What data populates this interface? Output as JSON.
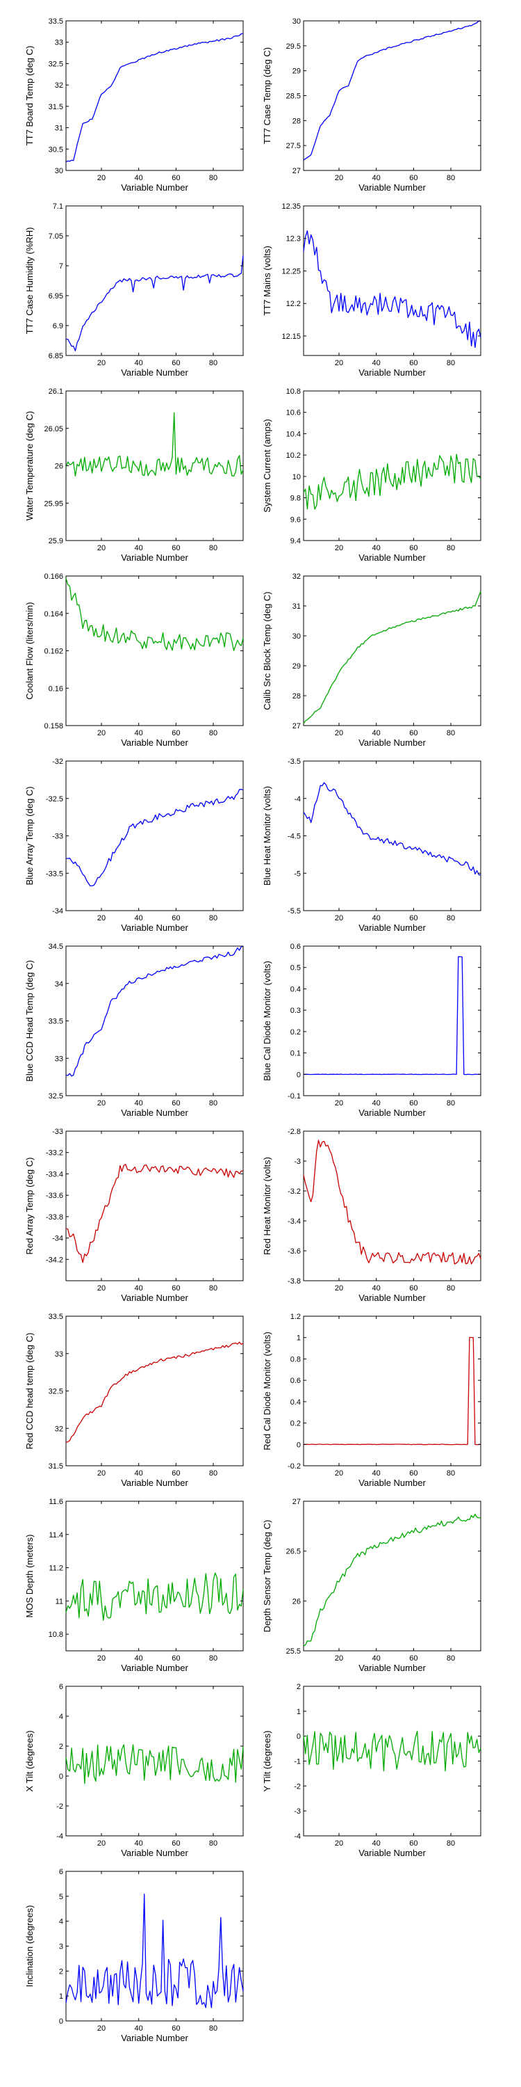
{
  "chart_data": [
    {
      "type": "line",
      "xlabel": "Variable Number",
      "ylabel": "TT7 Board Temp (deg C)",
      "xlim": [
        1,
        96
      ],
      "xticks": [
        20,
        40,
        60,
        80
      ],
      "ylim": [
        30,
        33.5
      ],
      "yticks": [
        30,
        30.5,
        31,
        31.5,
        32,
        32.5,
        33,
        33.5
      ],
      "color": "#0000ff",
      "noise": 0.02,
      "seed": 1,
      "spikes": [],
      "anchors": [
        [
          1,
          30.2
        ],
        [
          5,
          30.25
        ],
        [
          10,
          31.1
        ],
        [
          15,
          31.2
        ],
        [
          20,
          31.8
        ],
        [
          25,
          31.95
        ],
        [
          30,
          32.4
        ],
        [
          35,
          32.5
        ],
        [
          50,
          32.75
        ],
        [
          70,
          32.95
        ],
        [
          90,
          33.1
        ],
        [
          96,
          33.2
        ]
      ]
    },
    {
      "type": "line",
      "xlabel": "Variable Number",
      "ylabel": "TT7 Case Temp (deg C)",
      "xlim": [
        1,
        96
      ],
      "xticks": [
        20,
        40,
        60,
        80
      ],
      "ylim": [
        27,
        30
      ],
      "yticks": [
        27,
        27.5,
        28,
        28.5,
        29,
        29.5,
        30
      ],
      "color": "#0000ff",
      "noise": 0.015,
      "seed": 2,
      "spikes": [],
      "anchors": [
        [
          1,
          27.2
        ],
        [
          5,
          27.3
        ],
        [
          10,
          27.9
        ],
        [
          15,
          28.1
        ],
        [
          20,
          28.6
        ],
        [
          25,
          28.7
        ],
        [
          30,
          29.2
        ],
        [
          35,
          29.3
        ],
        [
          50,
          29.5
        ],
        [
          70,
          29.7
        ],
        [
          90,
          29.9
        ],
        [
          96,
          30
        ]
      ]
    },
    {
      "type": "line",
      "xlabel": "Variable Number",
      "ylabel": "TT7 Case Humidity (%RH)",
      "xlim": [
        1,
        96
      ],
      "xticks": [
        20,
        40,
        60,
        80
      ],
      "ylim": [
        6.85,
        7.1
      ],
      "yticks": [
        6.85,
        6.9,
        6.95,
        7,
        7.05,
        7.1
      ],
      "color": "#0000ff",
      "noise": 0.003,
      "seed": 3,
      "spikes": [
        [
          37,
          -0.02
        ],
        [
          48,
          -0.015
        ],
        [
          64,
          -0.02
        ],
        [
          78,
          -0.015
        ],
        [
          96,
          0.03
        ]
      ],
      "anchors": [
        [
          1,
          6.88
        ],
        [
          6,
          6.86
        ],
        [
          10,
          6.9
        ],
        [
          15,
          6.92
        ],
        [
          20,
          6.94
        ],
        [
          25,
          6.96
        ],
        [
          30,
          6.975
        ],
        [
          50,
          6.98
        ],
        [
          95,
          6.985
        ]
      ]
    },
    {
      "type": "line",
      "xlabel": "Variable Number",
      "ylabel": "TT7 Mains (volts)",
      "xlim": [
        1,
        96
      ],
      "xticks": [
        20,
        40,
        60,
        80
      ],
      "ylim": [
        12.12,
        12.35
      ],
      "yticks": [
        12.15,
        12.2,
        12.25,
        12.3,
        12.35
      ],
      "color": "#0000ff",
      "noise": 0.018,
      "seed": 4,
      "spikes": [],
      "anchors": [
        [
          1,
          12.29
        ],
        [
          5,
          12.3
        ],
        [
          10,
          12.26
        ],
        [
          15,
          12.2
        ],
        [
          25,
          12.2
        ],
        [
          40,
          12.2
        ],
        [
          60,
          12.19
        ],
        [
          80,
          12.18
        ],
        [
          96,
          12.14
        ]
      ]
    },
    {
      "type": "line",
      "xlabel": "Variable Number",
      "ylabel": "Water Temperature (deg C)",
      "xlim": [
        1,
        96
      ],
      "xticks": [
        20,
        40,
        60,
        80
      ],
      "ylim": [
        25.9,
        26.1
      ],
      "yticks": [
        25.9,
        25.95,
        26,
        26.05,
        26.1
      ],
      "color": "#00aa00",
      "noise": 0.014,
      "seed": 5,
      "spikes": [
        [
          59,
          0.06
        ]
      ],
      "anchors": [
        [
          1,
          26
        ],
        [
          96,
          26
        ]
      ]
    },
    {
      "type": "line",
      "xlabel": "Variable Number",
      "ylabel": "System Current (amps)",
      "xlim": [
        1,
        96
      ],
      "xticks": [
        20,
        40,
        60,
        80
      ],
      "ylim": [
        9.4,
        10.8
      ],
      "yticks": [
        9.4,
        9.6,
        9.8,
        10,
        10.2,
        10.4,
        10.6,
        10.8
      ],
      "color": "#00aa00",
      "noise": 0.15,
      "seed": 6,
      "spikes": [],
      "anchors": [
        [
          1,
          9.8
        ],
        [
          50,
          10
        ],
        [
          96,
          10.1
        ]
      ]
    },
    {
      "type": "line",
      "xlabel": "Variable Number",
      "ylabel": "Coolant Flow (liters/min)",
      "xlim": [
        1,
        96
      ],
      "xticks": [
        20,
        40,
        60,
        80
      ],
      "ylim": [
        0.158,
        0.166
      ],
      "yticks": [
        0.158,
        0.16,
        0.162,
        0.164,
        0.166
      ],
      "color": "#00aa00",
      "noise": 0.0005,
      "seed": 7,
      "spikes": [],
      "anchors": [
        [
          1,
          0.1655
        ],
        [
          5,
          0.165
        ],
        [
          10,
          0.1635
        ],
        [
          20,
          0.163
        ],
        [
          40,
          0.1625
        ],
        [
          60,
          0.1625
        ],
        [
          96,
          0.1625
        ]
      ]
    },
    {
      "type": "line",
      "xlabel": "Variable Number",
      "ylabel": "Calib Src Block Temp (deg C)",
      "xlim": [
        1,
        96
      ],
      "xticks": [
        20,
        40,
        60,
        80
      ],
      "ylim": [
        27,
        32
      ],
      "yticks": [
        27,
        28,
        29,
        30,
        31,
        32
      ],
      "color": "#00aa00",
      "noise": 0.04,
      "seed": 8,
      "spikes": [],
      "anchors": [
        [
          1,
          27.1
        ],
        [
          10,
          27.6
        ],
        [
          20,
          28.8
        ],
        [
          30,
          29.6
        ],
        [
          40,
          30.1
        ],
        [
          60,
          30.5
        ],
        [
          80,
          30.8
        ],
        [
          93,
          31
        ],
        [
          96,
          31.5
        ]
      ]
    },
    {
      "type": "line",
      "xlabel": "Variable Number",
      "ylabel": "Blue Array Temp (deg C)",
      "xlim": [
        1,
        96
      ],
      "xticks": [
        20,
        40,
        60,
        80
      ],
      "ylim": [
        -34,
        -32
      ],
      "yticks": [
        -34,
        -33.5,
        -33,
        -32.5,
        -32
      ],
      "color": "#0000ff",
      "noise": 0.04,
      "seed": 9,
      "spikes": [],
      "anchors": [
        [
          1,
          -33.3
        ],
        [
          8,
          -33.4
        ],
        [
          15,
          -33.7
        ],
        [
          25,
          -33.3
        ],
        [
          35,
          -32.9
        ],
        [
          50,
          -32.75
        ],
        [
          70,
          -32.6
        ],
        [
          90,
          -32.5
        ],
        [
          96,
          -32.35
        ]
      ]
    },
    {
      "type": "line",
      "xlabel": "Variable Number",
      "ylabel": "Blue Heat Monitor (volts)",
      "xlim": [
        1,
        96
      ],
      "xticks": [
        20,
        40,
        60,
        80
      ],
      "ylim": [
        -5.5,
        -3.5
      ],
      "yticks": [
        -5.5,
        -5,
        -4.5,
        -4,
        -3.5
      ],
      "color": "#0000ff",
      "noise": 0.04,
      "seed": 10,
      "spikes": [],
      "anchors": [
        [
          1,
          -4.2
        ],
        [
          5,
          -4.3
        ],
        [
          10,
          -3.8
        ],
        [
          18,
          -3.9
        ],
        [
          25,
          -4.2
        ],
        [
          35,
          -4.5
        ],
        [
          50,
          -4.6
        ],
        [
          70,
          -4.75
        ],
        [
          90,
          -4.9
        ],
        [
          96,
          -5.05
        ]
      ]
    },
    {
      "type": "line",
      "xlabel": "Variable Number",
      "ylabel": "Blue CCD Head Temp (deg C)",
      "xlim": [
        1,
        96
      ],
      "xticks": [
        20,
        40,
        60,
        80
      ],
      "ylim": [
        32.5,
        34.5
      ],
      "yticks": [
        32.5,
        33,
        33.5,
        34,
        34.5
      ],
      "color": "#0000ff",
      "noise": 0.03,
      "seed": 11,
      "spikes": [],
      "anchors": [
        [
          1,
          32.75
        ],
        [
          5,
          32.8
        ],
        [
          12,
          33.2
        ],
        [
          20,
          33.4
        ],
        [
          25,
          33.75
        ],
        [
          35,
          34
        ],
        [
          50,
          34.15
        ],
        [
          70,
          34.3
        ],
        [
          90,
          34.4
        ],
        [
          96,
          34.5
        ]
      ]
    },
    {
      "type": "line",
      "xlabel": "Variable Number",
      "ylabel": "Blue Cal Diode Monitor (volts)",
      "xlim": [
        1,
        96
      ],
      "xticks": [
        20,
        40,
        60,
        80
      ],
      "ylim": [
        -0.1,
        0.6
      ],
      "yticks": [
        -0.1,
        0,
        0.1,
        0.2,
        0.3,
        0.4,
        0.5,
        0.6
      ],
      "color": "#0000ff",
      "noise": 0.001,
      "seed": 12,
      "spikes": [],
      "anchors": [
        [
          1,
          0
        ],
        [
          83,
          0
        ],
        [
          84,
          0.55
        ],
        [
          86,
          0.55
        ],
        [
          87,
          0
        ],
        [
          96,
          0
        ]
      ]
    },
    {
      "type": "line",
      "xlabel": "Variable Number",
      "ylabel": "Red Array Temp (deg C)",
      "xlim": [
        1,
        96
      ],
      "xticks": [
        20,
        40,
        60,
        80
      ],
      "ylim": [
        -34.4,
        -33
      ],
      "yticks": [
        -34.2,
        -34,
        -33.8,
        -33.6,
        -33.4,
        -33.2,
        -33
      ],
      "color": "#cc0000",
      "noise": 0.04,
      "seed": 13,
      "spikes": [],
      "anchors": [
        [
          1,
          -33.9
        ],
        [
          5,
          -34
        ],
        [
          10,
          -34.2
        ],
        [
          15,
          -34.05
        ],
        [
          20,
          -33.8
        ],
        [
          25,
          -33.6
        ],
        [
          30,
          -33.35
        ],
        [
          45,
          -33.35
        ],
        [
          96,
          -33.4
        ]
      ]
    },
    {
      "type": "line",
      "xlabel": "Variable Number",
      "ylabel": "Red Heat Monitor (volts)",
      "xlim": [
        1,
        96
      ],
      "xticks": [
        20,
        40,
        60,
        80
      ],
      "ylim": [
        -3.8,
        -2.8
      ],
      "yticks": [
        -3.8,
        -3.6,
        -3.4,
        -3.2,
        -3,
        -2.8
      ],
      "color": "#cc0000",
      "noise": 0.04,
      "seed": 14,
      "spikes": [],
      "anchors": [
        [
          1,
          -3.1
        ],
        [
          5,
          -3.3
        ],
        [
          9,
          -2.85
        ],
        [
          15,
          -2.95
        ],
        [
          20,
          -3.15
        ],
        [
          28,
          -3.5
        ],
        [
          35,
          -3.65
        ],
        [
          50,
          -3.65
        ],
        [
          96,
          -3.65
        ]
      ]
    },
    {
      "type": "line",
      "xlabel": "Variable Number",
      "ylabel": "Red CCD head temp (deg C)",
      "xlim": [
        1,
        96
      ],
      "xticks": [
        20,
        40,
        60,
        80
      ],
      "ylim": [
        31.5,
        33.5
      ],
      "yticks": [
        31.5,
        32,
        32.5,
        33,
        33.5
      ],
      "color": "#cc0000",
      "noise": 0.02,
      "seed": 15,
      "spikes": [],
      "anchors": [
        [
          1,
          31.8
        ],
        [
          5,
          31.9
        ],
        [
          10,
          32.15
        ],
        [
          20,
          32.3
        ],
        [
          25,
          32.55
        ],
        [
          35,
          32.75
        ],
        [
          50,
          32.9
        ],
        [
          70,
          33
        ],
        [
          96,
          33.15
        ]
      ]
    },
    {
      "type": "line",
      "xlabel": "Variable Number",
      "ylabel": "Red Cal Diode Monitor (volts)",
      "xlim": [
        1,
        96
      ],
      "xticks": [
        20,
        40,
        60,
        80
      ],
      "ylim": [
        -0.2,
        1.2
      ],
      "yticks": [
        -0.2,
        0,
        0.2,
        0.4,
        0.6,
        0.8,
        1,
        1.2
      ],
      "color": "#cc0000",
      "noise": 0.002,
      "seed": 16,
      "spikes": [],
      "anchors": [
        [
          1,
          0
        ],
        [
          89,
          0
        ],
        [
          90,
          1
        ],
        [
          92,
          1
        ],
        [
          93,
          0
        ],
        [
          96,
          0
        ]
      ]
    },
    {
      "type": "line",
      "xlabel": "Variable Number",
      "ylabel": "MOS Depth (meters)",
      "xlim": [
        1,
        96
      ],
      "xticks": [
        20,
        40,
        60,
        80
      ],
      "ylim": [
        10.7,
        11.6
      ],
      "yticks": [
        10.8,
        11,
        11.2,
        11.4,
        11.6
      ],
      "color": "#00aa00",
      "noise": 0.13,
      "seed": 17,
      "spikes": [],
      "anchors": [
        [
          1,
          11
        ],
        [
          96,
          11.05
        ]
      ]
    },
    {
      "type": "line",
      "xlabel": "Variable Number",
      "ylabel": "Depth Sensor Temp (deg C)",
      "xlim": [
        1,
        96
      ],
      "xticks": [
        20,
        40,
        60,
        80
      ],
      "ylim": [
        25.5,
        27
      ],
      "yticks": [
        25.5,
        26,
        26.5,
        27
      ],
      "color": "#00aa00",
      "noise": 0.03,
      "seed": 18,
      "spikes": [],
      "anchors": [
        [
          1,
          25.55
        ],
        [
          5,
          25.6
        ],
        [
          10,
          25.9
        ],
        [
          20,
          26.2
        ],
        [
          30,
          26.45
        ],
        [
          45,
          26.6
        ],
        [
          60,
          26.7
        ],
        [
          80,
          26.8
        ],
        [
          96,
          26.85
        ]
      ]
    },
    {
      "type": "line",
      "xlabel": "Variable Number",
      "ylabel": "X Tilt (degrees)",
      "xlim": [
        1,
        96
      ],
      "xticks": [
        20,
        40,
        60,
        80
      ],
      "ylim": [
        -4,
        6
      ],
      "yticks": [
        -4,
        -2,
        0,
        2,
        4,
        6
      ],
      "color": "#00aa00",
      "noise": 1.3,
      "seed": 19,
      "spikes": [],
      "anchors": [
        [
          1,
          0.8
        ],
        [
          96,
          0.8
        ]
      ]
    },
    {
      "type": "line",
      "xlabel": "Variable Number",
      "ylabel": "Y Tilt (degrees)",
      "xlim": [
        1,
        96
      ],
      "xticks": [
        20,
        40,
        60,
        80
      ],
      "ylim": [
        -4,
        2
      ],
      "yticks": [
        -4,
        -3,
        -2,
        -1,
        0,
        1,
        2
      ],
      "color": "#00aa00",
      "noise": 0.8,
      "seed": 20,
      "spikes": [],
      "anchors": [
        [
          1,
          -0.6
        ],
        [
          96,
          -0.6
        ]
      ]
    },
    {
      "type": "line",
      "xlabel": "Variable Number",
      "ylabel": "Inclination (degrees)",
      "xlim": [
        1,
        96
      ],
      "xticks": [
        20,
        40,
        60,
        80
      ],
      "ylim": [
        0,
        6
      ],
      "yticks": [
        0,
        1,
        2,
        3,
        4,
        5,
        6
      ],
      "color": "#0000ff",
      "noise": 1.0,
      "seed": 21,
      "spikes": [
        [
          43,
          3.5
        ],
        [
          53,
          3.2
        ],
        [
          84,
          2.5
        ]
      ],
      "anchors": [
        [
          1,
          1.5
        ],
        [
          96,
          1.5
        ]
      ]
    }
  ]
}
